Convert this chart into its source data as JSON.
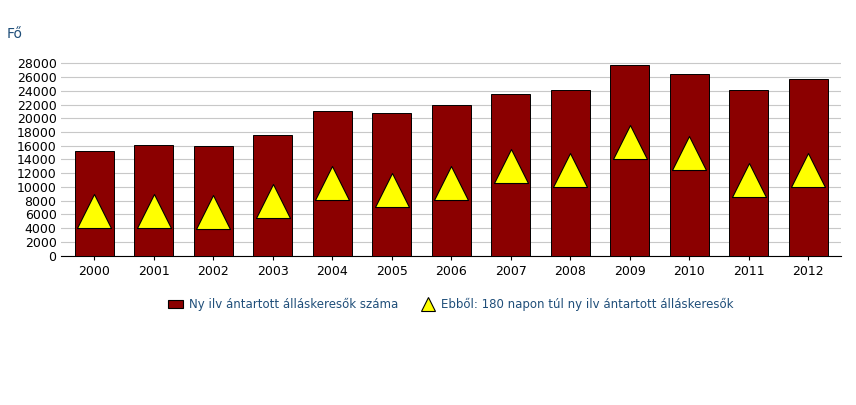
{
  "years": [
    2000,
    2001,
    2002,
    2003,
    2004,
    2005,
    2006,
    2007,
    2008,
    2009,
    2010,
    2011,
    2012
  ],
  "bar_values": [
    15300,
    16100,
    16000,
    17500,
    21000,
    20700,
    22000,
    23500,
    24100,
    27700,
    26400,
    24100,
    25700
  ],
  "triangle_values": [
    6500,
    6500,
    6300,
    8000,
    10500,
    9500,
    10500,
    13000,
    12500,
    16500,
    15000,
    11000,
    12500
  ],
  "bar_color": "#8B0000",
  "bar_edgecolor": "#000000",
  "triangle_color": "#FFFF00",
  "triangle_edgecolor": "#000000",
  "fo_label": "Fő",
  "ylim": [
    0,
    30000
  ],
  "yticks": [
    0,
    2000,
    4000,
    6000,
    8000,
    10000,
    12000,
    14000,
    16000,
    18000,
    20000,
    22000,
    24000,
    26000,
    28000
  ],
  "legend_bar_label": "Ny ilv ántartott álláskeresők száma",
  "legend_tri_label": "Ebből: 180 napon túl ny ilv ántartott álláskeresők",
  "background_color": "#ffffff",
  "grid_color": "#c8c8c8",
  "bar_width": 0.65
}
